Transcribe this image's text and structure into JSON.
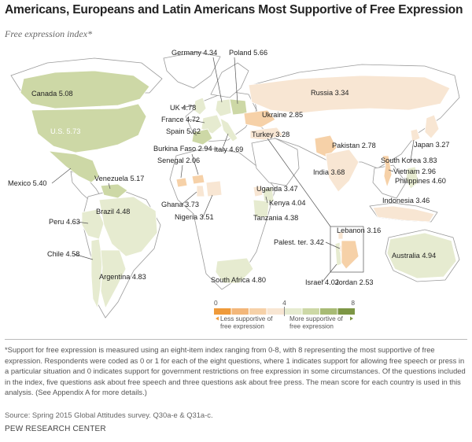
{
  "title": "Americans, Europeans and Latin Americans Most Supportive of Free Expression",
  "subtitle": "Free expression index*",
  "colors": {
    "ocean": "#ffffff",
    "land_nodata": "#ffffff",
    "land_stroke": "#9a9a9a",
    "scale": [
      "#ef9a3a",
      "#f3b77a",
      "#f6d1a8",
      "#f8e6d3",
      "#e6ebd0",
      "#cdd8a6",
      "#a8bb75",
      "#7d9645"
    ]
  },
  "legend": {
    "min": "0",
    "mid": "4",
    "max": "8",
    "less": "Less supportive of free expression",
    "more": "More supportive of free expression"
  },
  "countries": [
    {
      "name": "Canada",
      "value": "5.08"
    },
    {
      "name": "U.S.",
      "value": "5.73"
    },
    {
      "name": "Mexico",
      "value": "5.40"
    },
    {
      "name": "Venezuela",
      "value": "5.17"
    },
    {
      "name": "Peru",
      "value": "4.63"
    },
    {
      "name": "Brazil",
      "value": "4.48"
    },
    {
      "name": "Chile",
      "value": "4.58"
    },
    {
      "name": "Argentina",
      "value": "4.83"
    },
    {
      "name": "Germany",
      "value": "4.34"
    },
    {
      "name": "Poland",
      "value": "5.66"
    },
    {
      "name": "UK",
      "value": "4.78"
    },
    {
      "name": "France",
      "value": "4.72"
    },
    {
      "name": "Spain",
      "value": "5.62"
    },
    {
      "name": "Italy",
      "value": "4.69"
    },
    {
      "name": "Russia",
      "value": "3.34"
    },
    {
      "name": "Ukraine",
      "value": "2.85"
    },
    {
      "name": "Turkey",
      "value": "3.28"
    },
    {
      "name": "Burkina Faso",
      "value": "2.94"
    },
    {
      "name": "Senegal",
      "value": "2.06"
    },
    {
      "name": "Ghana",
      "value": "3.73"
    },
    {
      "name": "Nigeria",
      "value": "3.51"
    },
    {
      "name": "Uganda",
      "value": "3.47"
    },
    {
      "name": "Kenya",
      "value": "4.04"
    },
    {
      "name": "Tanzania",
      "value": "4.38"
    },
    {
      "name": "South Africa",
      "value": "4.80"
    },
    {
      "name": "Pakistan",
      "value": "2.78"
    },
    {
      "name": "India",
      "value": "3.68"
    },
    {
      "name": "Japan",
      "value": "3.27"
    },
    {
      "name": "South Korea",
      "value": "3.83"
    },
    {
      "name": "Vietnam",
      "value": "2.96"
    },
    {
      "name": "Philippines",
      "value": "4.60"
    },
    {
      "name": "Indonesia",
      "value": "3.46"
    },
    {
      "name": "Australia",
      "value": "4.94"
    },
    {
      "name": "Lebanon",
      "value": "3.16"
    },
    {
      "name": "Palest. ter.",
      "value": "3.42"
    },
    {
      "name": "Israel",
      "value": "4.02"
    },
    {
      "name": "Jordan",
      "value": "2.53"
    }
  ],
  "footnote": "*Support for free expression is measured using an eight-item index ranging from 0-8, with 8 representing the most supportive of free expression. Respondents were coded as 0 or 1 for each of the eight questions, where 1 indicates support for allowing free speech or press in a particular situation and 0 indicates support for government restrictions on free expression in some circumstances. Of the questions included in the index, five questions ask about free speech and three questions ask about free press. The mean score for each country is used in this analysis. (See Appendix A for more details.)",
  "source": "Source: Spring 2015 Global Attitudes survey. Q30a-e & Q31a-c.",
  "org": "PEW RESEARCH CENTER"
}
